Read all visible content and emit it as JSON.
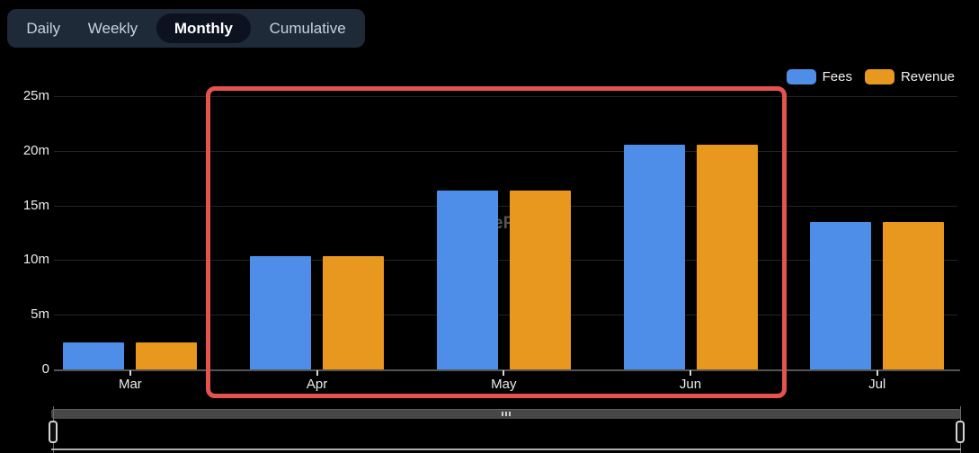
{
  "tabs": {
    "items": [
      {
        "label": "Daily",
        "active": false
      },
      {
        "label": "Weekly",
        "active": false
      },
      {
        "label": "Monthly",
        "active": true
      },
      {
        "label": "Cumulative",
        "active": false
      }
    ]
  },
  "legend": {
    "items": [
      {
        "label": "Fees",
        "color": "#4e8ee8"
      },
      {
        "label": "Revenue",
        "color": "#e8981f"
      }
    ]
  },
  "chart_data": {
    "type": "bar",
    "title": "",
    "categories": [
      "Mar",
      "Apr",
      "May",
      "Jun",
      "Jul"
    ],
    "series": [
      {
        "name": "Fees",
        "color": "#4e8ee8",
        "values": [
          2.5,
          10.4,
          16.4,
          20.6,
          13.5
        ]
      },
      {
        "name": "Revenue",
        "color": "#e8981f",
        "values": [
          2.5,
          10.4,
          16.4,
          20.6,
          13.5
        ]
      }
    ],
    "unit": "m",
    "ytick_labels": [
      "0",
      "5m",
      "10m",
      "15m",
      "20m",
      "25m"
    ],
    "ylim": [
      0,
      25
    ],
    "grid": true,
    "legend_position": "top-right",
    "background": "#000000"
  },
  "annotation": {
    "shape": "rectangle",
    "color": "#e4534e",
    "highlighted_categories": [
      "Apr",
      "May",
      "Jun"
    ]
  },
  "watermark": {
    "text": "eF"
  },
  "navigator": {
    "grip_icon": "drag-dots"
  }
}
